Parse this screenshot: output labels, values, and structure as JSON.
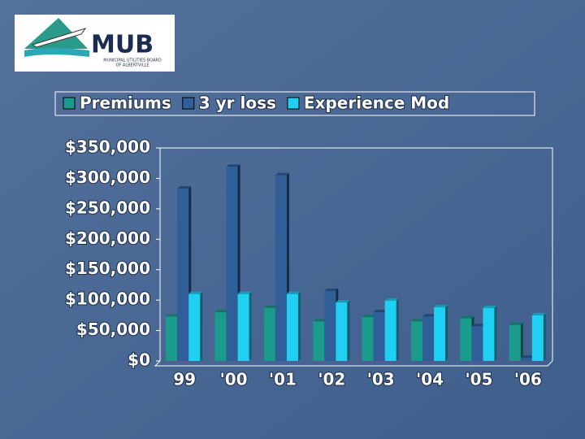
{
  "logo": {
    "name": "MUB",
    "line1": "MUNICIPAL UTILITIES BOARD",
    "line2": "OF ALBERTVILLE"
  },
  "chart_data": {
    "type": "bar",
    "categories": [
      "99",
      "'00",
      "'01",
      "'02",
      "'03",
      "'04",
      "'05",
      "'06"
    ],
    "series": [
      {
        "name": "Premiums",
        "color": "#1b9b8c",
        "values": [
          73000,
          80000,
          87000,
          65000,
          72000,
          65000,
          70000,
          59000
        ]
      },
      {
        "name": "3 yr loss",
        "color": "#2f5e98",
        "values": [
          283000,
          319000,
          305000,
          115000,
          80000,
          73000,
          57000,
          5000
        ]
      },
      {
        "name": "Experience Mod",
        "color": "#1fd0f2",
        "values": [
          110000,
          110000,
          110000,
          96000,
          99000,
          88000,
          87000,
          75000
        ]
      }
    ],
    "ylim": [
      0,
      350000
    ],
    "yticks": [
      {
        "value": 0,
        "label": "$0"
      },
      {
        "value": 50000,
        "label": "$50,000"
      },
      {
        "value": 100000,
        "label": "$100,000"
      },
      {
        "value": 150000,
        "label": "$150,000"
      },
      {
        "value": 200000,
        "label": "$200,000"
      },
      {
        "value": 250000,
        "label": "$250,000"
      },
      {
        "value": 300000,
        "label": "$300,000"
      },
      {
        "value": 350000,
        "label": "$350,000"
      }
    ],
    "legend": "top"
  }
}
